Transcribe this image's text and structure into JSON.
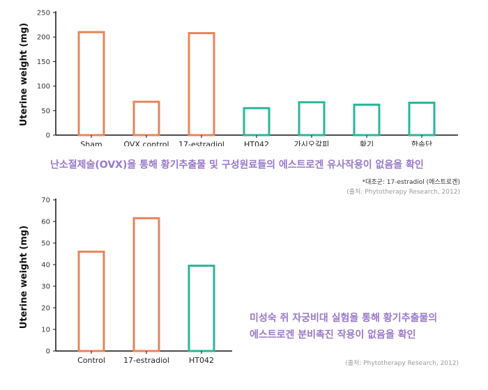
{
  "chart_data": [
    {
      "type": "bar",
      "ylabel": "Uterine weight (mg)",
      "ylim": [
        0,
        250
      ],
      "yticks": [
        0,
        50,
        100,
        150,
        200,
        250
      ],
      "categories": [
        "Sham",
        "OVX control",
        "17-estradiol",
        "HT042",
        "가시오갈피",
        "황기",
        "한속단"
      ],
      "values": [
        210,
        68,
        208,
        55,
        67,
        62,
        66
      ],
      "bar_colors": [
        "#e8845a",
        "#e8845a",
        "#e8845a",
        "#2bb59a",
        "#2bb59a",
        "#2bb59a",
        "#2bb59a"
      ],
      "caption": "난소절제술(OVX)을 통해 황기추출물 및 구성원료들의 에스트로겐 유사작용이 없음을 확인",
      "note": "*대조군: 17-estradiol (에스트로겐)",
      "source": "(출처: Phytotherapy Research, 2012)"
    },
    {
      "type": "bar",
      "ylabel": "Uterine weight (mg)",
      "ylim": [
        0,
        70
      ],
      "yticks": [
        0,
        10,
        20,
        30,
        40,
        50,
        60,
        70
      ],
      "categories": [
        "Control",
        "17-estradiol",
        "HT042"
      ],
      "values": [
        46,
        61.5,
        39.5
      ],
      "bar_colors": [
        "#e8845a",
        "#e8845a",
        "#2bb59a"
      ],
      "caption_lines": [
        "미성숙 쥐 자궁비대 실험을 통해 황기추출물의",
        "에스트로겐 분비촉진 작용이 없음을 확인"
      ],
      "source": "(출처: Phytotherapy Research, 2012)"
    }
  ]
}
